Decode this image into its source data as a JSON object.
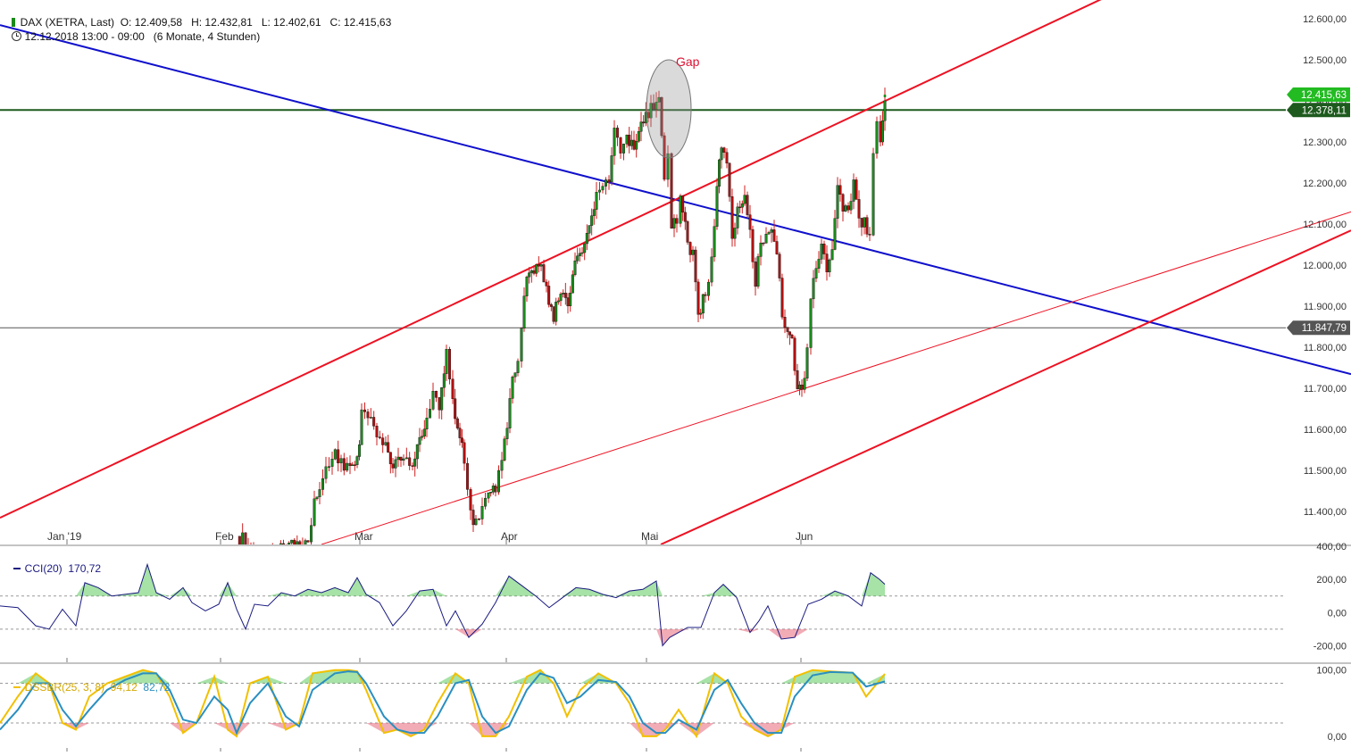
{
  "header": {
    "symbol": "DAX (XETRA, Last)",
    "ohlc": "O: 12.409,58   H: 12.432,81   L: 12.402,61   C: 12.415,63",
    "period": "12.12.2018 13:00 - 09:00   (6 Monate, 4 Stunden)"
  },
  "annotation": {
    "gap_label": "Gap"
  },
  "price_labels": {
    "last": "12.415,63",
    "resistance": "12.378,11",
    "support": "11.847,79"
  },
  "colors": {
    "up_candle": "#1a8a1a",
    "down_candle": "#b01010",
    "wick": "#cc2222",
    "trend_blue": "#1010cc",
    "trend_red": "#ee1122",
    "resistance": "#1e5a1e",
    "support": "#555555",
    "cci_line": "#1a1a80",
    "dss_fast": "#f2c000",
    "dss_slow": "#2a8fc0"
  },
  "chart_data": [
    {
      "type": "candlestick",
      "title": "DAX (XETRA, Last)",
      "x_axis_labels": [
        "Jan '19",
        "Feb",
        "Mar",
        "Apr",
        "Mai",
        "Jun"
      ],
      "y_ticks": [
        11400,
        11500,
        11600,
        11700,
        11800,
        11900,
        12000,
        12100,
        12200,
        12300,
        12400,
        12500,
        12600
      ],
      "y_tick_labels": [
        "11.400,00",
        "11.500,00",
        "11.600,00",
        "11.700,00",
        "11.800,00",
        "11.900,00",
        "12.000,00",
        "12.100,00",
        "12.200,00",
        "12.300,00",
        "12.400,00",
        "12.500,00",
        "12.600,00"
      ],
      "ylim": [
        11320,
        12620
      ],
      "close_path": [
        {
          "t": 265,
          "v": 11340
        },
        {
          "t": 275,
          "v": 11330
        },
        {
          "t": 290,
          "v": 11280
        },
        {
          "t": 345,
          "v": 11340
        },
        {
          "t": 352,
          "v": 11420
        },
        {
          "t": 358,
          "v": 11460
        },
        {
          "t": 365,
          "v": 11510
        },
        {
          "t": 372,
          "v": 11540
        },
        {
          "t": 382,
          "v": 11520
        },
        {
          "t": 392,
          "v": 11500
        },
        {
          "t": 400,
          "v": 11520
        },
        {
          "t": 405,
          "v": 11640
        },
        {
          "t": 412,
          "v": 11630
        },
        {
          "t": 422,
          "v": 11590
        },
        {
          "t": 432,
          "v": 11560
        },
        {
          "t": 440,
          "v": 11500
        },
        {
          "t": 452,
          "v": 11540
        },
        {
          "t": 462,
          "v": 11510
        },
        {
          "t": 470,
          "v": 11580
        },
        {
          "t": 478,
          "v": 11620
        },
        {
          "t": 485,
          "v": 11690
        },
        {
          "t": 492,
          "v": 11640
        },
        {
          "t": 500,
          "v": 11800
        },
        {
          "t": 507,
          "v": 11660
        },
        {
          "t": 515,
          "v": 11590
        },
        {
          "t": 520,
          "v": 11520
        },
        {
          "t": 527,
          "v": 11400
        },
        {
          "t": 533,
          "v": 11370
        },
        {
          "t": 540,
          "v": 11420
        },
        {
          "t": 547,
          "v": 11440
        },
        {
          "t": 555,
          "v": 11450
        },
        {
          "t": 562,
          "v": 11520
        },
        {
          "t": 568,
          "v": 11620
        },
        {
          "t": 574,
          "v": 11720
        },
        {
          "t": 580,
          "v": 11770
        },
        {
          "t": 584,
          "v": 11860
        },
        {
          "t": 590,
          "v": 11960
        },
        {
          "t": 598,
          "v": 11990
        },
        {
          "t": 606,
          "v": 11990
        },
        {
          "t": 612,
          "v": 11940
        },
        {
          "t": 620,
          "v": 11870
        },
        {
          "t": 628,
          "v": 11940
        },
        {
          "t": 636,
          "v": 11910
        },
        {
          "t": 644,
          "v": 12010
        },
        {
          "t": 652,
          "v": 12040
        },
        {
          "t": 660,
          "v": 12100
        },
        {
          "t": 668,
          "v": 12180
        },
        {
          "t": 675,
          "v": 12190
        },
        {
          "t": 682,
          "v": 12220
        },
        {
          "t": 688,
          "v": 12330
        },
        {
          "t": 695,
          "v": 12290
        },
        {
          "t": 702,
          "v": 12310
        },
        {
          "t": 710,
          "v": 12300
        },
        {
          "t": 718,
          "v": 12350
        },
        {
          "t": 726,
          "v": 12370
        },
        {
          "t": 732,
          "v": 12390
        },
        {
          "t": 738,
          "v": 12420
        },
        {
          "t": 744,
          "v": 12200
        },
        {
          "t": 748,
          "v": 12270
        },
        {
          "t": 752,
          "v": 12100
        },
        {
          "t": 758,
          "v": 12110
        },
        {
          "t": 762,
          "v": 12160
        },
        {
          "t": 770,
          "v": 12060
        },
        {
          "t": 776,
          "v": 12020
        },
        {
          "t": 782,
          "v": 11880
        },
        {
          "t": 790,
          "v": 11930
        },
        {
          "t": 797,
          "v": 12010
        },
        {
          "t": 803,
          "v": 12210
        },
        {
          "t": 808,
          "v": 12290
        },
        {
          "t": 814,
          "v": 12240
        },
        {
          "t": 820,
          "v": 12070
        },
        {
          "t": 826,
          "v": 12130
        },
        {
          "t": 834,
          "v": 12170
        },
        {
          "t": 840,
          "v": 12070
        },
        {
          "t": 846,
          "v": 11960
        },
        {
          "t": 852,
          "v": 12060
        },
        {
          "t": 858,
          "v": 12070
        },
        {
          "t": 864,
          "v": 12090
        },
        {
          "t": 870,
          "v": 12040
        },
        {
          "t": 876,
          "v": 11880
        },
        {
          "t": 882,
          "v": 11850
        },
        {
          "t": 887,
          "v": 11820
        },
        {
          "t": 893,
          "v": 11700
        },
        {
          "t": 898,
          "v": 11690
        },
        {
          "t": 904,
          "v": 11790
        },
        {
          "t": 908,
          "v": 11920
        },
        {
          "t": 914,
          "v": 12010
        },
        {
          "t": 920,
          "v": 12050
        },
        {
          "t": 926,
          "v": 11980
        },
        {
          "t": 932,
          "v": 12040
        },
        {
          "t": 938,
          "v": 12200
        },
        {
          "t": 944,
          "v": 12130
        },
        {
          "t": 950,
          "v": 12140
        },
        {
          "t": 956,
          "v": 12200
        },
        {
          "t": 962,
          "v": 12100
        },
        {
          "t": 968,
          "v": 12100
        },
        {
          "t": 974,
          "v": 12070
        },
        {
          "t": 978,
          "v": 12270
        },
        {
          "t": 982,
          "v": 12340
        },
        {
          "t": 986,
          "v": 12310
        },
        {
          "t": 991,
          "v": 12415.63
        }
      ],
      "candle_width_t": 2.6
    },
    {
      "type": "line",
      "title": "CCI(20)",
      "value_label": "170,72",
      "y_ticks": [
        -200,
        0,
        200,
        400
      ],
      "y_tick_labels": [
        "-200,00",
        "0,00",
        "200,00",
        "400,00"
      ],
      "ylim": [
        -300,
        400
      ],
      "reference_lines": [
        100,
        -100
      ],
      "x": [
        0,
        20,
        40,
        55,
        70,
        85,
        95,
        110,
        125,
        140,
        155,
        165,
        175,
        190,
        205,
        215,
        230,
        245,
        255,
        265,
        275,
        285,
        300,
        315,
        330,
        345,
        360,
        375,
        390,
        400,
        410,
        425,
        440,
        455,
        470,
        485,
        500,
        510,
        525,
        540,
        555,
        570,
        585,
        600,
        615,
        630,
        645,
        660,
        675,
        690,
        705,
        720,
        735,
        742,
        750,
        760,
        770,
        785,
        800,
        810,
        825,
        840,
        850,
        860,
        875,
        890,
        905,
        920,
        935,
        950,
        965,
        975,
        985,
        991
      ],
      "values": [
        40,
        30,
        -80,
        -100,
        20,
        -80,
        180,
        150,
        100,
        110,
        120,
        290,
        120,
        80,
        150,
        60,
        10,
        50,
        180,
        20,
        -100,
        50,
        40,
        120,
        100,
        140,
        120,
        150,
        120,
        210,
        110,
        60,
        -80,
        10,
        130,
        140,
        -80,
        10,
        -150,
        -70,
        60,
        220,
        160,
        100,
        30,
        90,
        150,
        140,
        110,
        90,
        130,
        140,
        190,
        -200,
        -150,
        -120,
        -90,
        -90,
        120,
        170,
        90,
        -120,
        -50,
        40,
        -160,
        -150,
        50,
        80,
        130,
        100,
        40,
        240,
        200,
        170.72
      ]
    },
    {
      "type": "line",
      "title": "DSSBR(25, 3, 8)",
      "value_labels": [
        "94,12",
        "82,72"
      ],
      "series": [
        {
          "name": "94,12",
          "values": [
            20,
            60,
            95,
            80,
            20,
            10,
            60,
            80,
            90,
            100,
            95,
            60,
            5,
            20,
            90,
            10,
            0,
            80,
            90,
            10,
            20,
            95,
            100,
            100,
            98,
            70,
            5,
            10,
            0,
            10,
            50,
            95,
            80,
            0,
            0,
            30,
            90,
            100,
            80,
            30,
            70,
            95,
            80,
            50,
            0,
            0,
            10,
            40,
            0,
            95,
            80,
            30,
            10,
            0,
            10,
            90,
            100,
            98,
            96,
            60,
            94.12
          ]
        },
        {
          "name": "82,72",
          "values": [
            10,
            40,
            80,
            80,
            40,
            15,
            40,
            70,
            85,
            95,
            95,
            70,
            25,
            20,
            60,
            40,
            5,
            50,
            80,
            30,
            15,
            70,
            95,
            98,
            97,
            80,
            30,
            10,
            5,
            5,
            30,
            80,
            85,
            30,
            5,
            15,
            70,
            95,
            88,
            50,
            60,
            85,
            82,
            60,
            20,
            5,
            5,
            25,
            10,
            70,
            85,
            50,
            20,
            5,
            5,
            60,
            92,
            97,
            96,
            75,
            82.72
          ]
        }
      ],
      "x": [
        0,
        20,
        40,
        55,
        70,
        85,
        100,
        120,
        140,
        160,
        175,
        190,
        205,
        220,
        240,
        255,
        265,
        280,
        300,
        320,
        335,
        350,
        375,
        390,
        400,
        410,
        430,
        445,
        460,
        475,
        490,
        510,
        525,
        540,
        555,
        570,
        590,
        605,
        620,
        635,
        650,
        670,
        690,
        705,
        720,
        735,
        745,
        760,
        780,
        800,
        815,
        830,
        845,
        860,
        875,
        890,
        910,
        930,
        955,
        970,
        991
      ],
      "y_ticks": [
        0,
        100
      ],
      "y_tick_labels": [
        "0,00",
        "100,00"
      ],
      "ylim": [
        -15,
        105
      ],
      "reference_lines": [
        80,
        20
      ]
    }
  ]
}
